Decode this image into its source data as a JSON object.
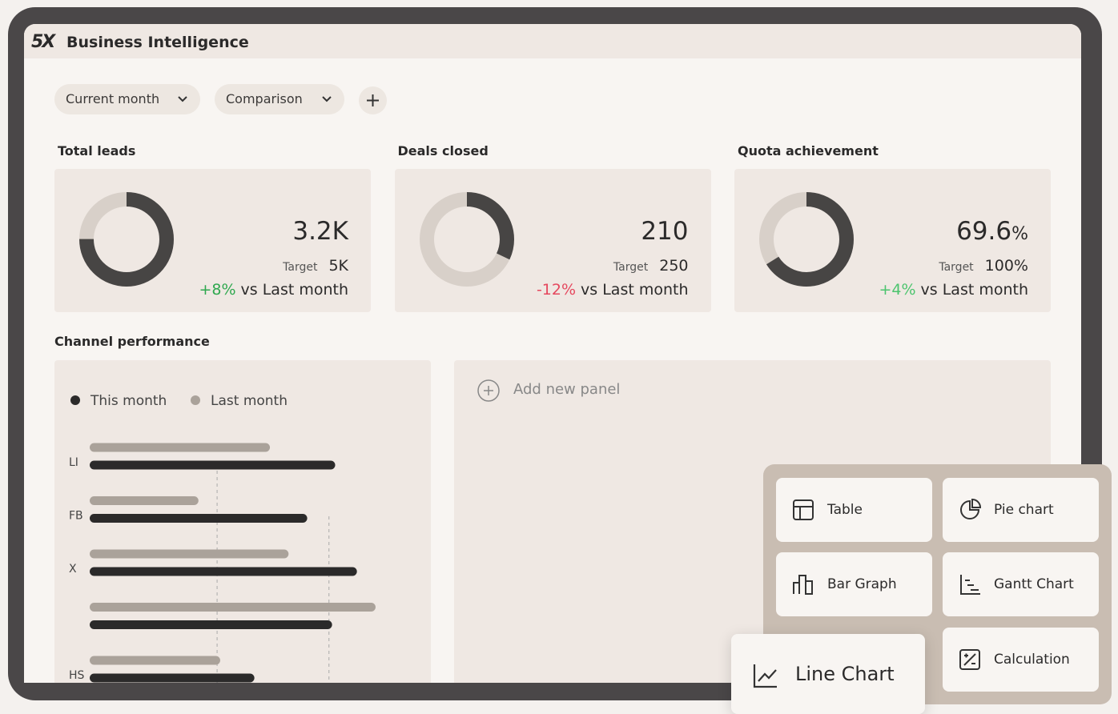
{
  "header": {
    "logo": "5X",
    "title": "Business Intelligence"
  },
  "filters": [
    "Current month",
    "Comparison"
  ],
  "kpis": [
    {
      "label": "Total leads",
      "value": "3.2K",
      "target_label": "Target",
      "target": "5K",
      "change": "+8%",
      "change_text": "vs Last month",
      "change_color": "#2fa84f",
      "progress": 75
    },
    {
      "label": "Deals closed",
      "value": "210",
      "target_label": "Target",
      "target": "250",
      "change": "-12%",
      "change_text": "vs Last month",
      "change_color": "#e5485e",
      "progress": 32
    },
    {
      "label": "Quota achievement",
      "value": "69.6",
      "unit": "%",
      "target_label": "Target",
      "target": "100%",
      "change": "+4%",
      "change_text": "vs Last month",
      "change_color": "#4cc46e",
      "progress": 66
    }
  ],
  "chart_data": {
    "type": "bar",
    "title": "Channel performance",
    "categories": [
      "LI",
      "FB",
      "X",
      null,
      "HS"
    ],
    "series": [
      {
        "name": "This month",
        "color": "#2b2a2a",
        "values": [
          79,
          70,
          86,
          78,
          53
        ]
      },
      {
        "name": "Last month",
        "color": "#aaa29a",
        "values": [
          58,
          35,
          64,
          92,
          42
        ]
      }
    ],
    "xlim": [
      0,
      100
    ],
    "reference_lines": [
      41,
      77
    ]
  },
  "add_panel": "Add new panel",
  "menu": [
    "Table",
    "Pie chart",
    "Bar Graph",
    "Gantt Chart",
    "Calculation"
  ],
  "dragged_item": "Line Chart"
}
